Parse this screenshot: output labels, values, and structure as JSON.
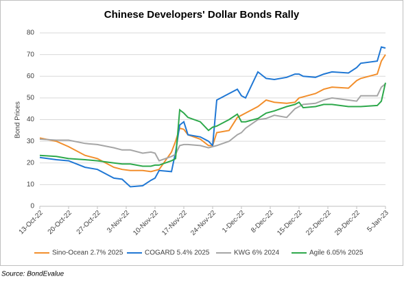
{
  "chart_data": {
    "type": "line",
    "title": "Chinese Developers' Dollar Bonds Rally",
    "y_label": "Bond Prices",
    "source": "Source: BondEvalue",
    "grid": true,
    "legend": "bottom",
    "x": [
      "2022-10-13",
      "2022-10-17",
      "2022-10-20",
      "2022-10-24",
      "2022-10-27",
      "2022-10-31",
      "2022-11-02",
      "2022-11-04",
      "2022-11-07",
      "2022-11-09",
      "2022-11-10",
      "2022-11-11",
      "2022-11-14",
      "2022-11-15",
      "2022-11-16",
      "2022-11-17",
      "2022-11-18",
      "2022-11-21",
      "2022-11-23",
      "2022-11-24",
      "2022-11-25",
      "2022-11-28",
      "2022-11-30",
      "2022-12-01",
      "2022-12-02",
      "2022-12-05",
      "2022-12-07",
      "2022-12-09",
      "2022-12-12",
      "2022-12-14",
      "2022-12-15",
      "2022-12-16",
      "2022-12-19",
      "2022-12-21",
      "2022-12-23",
      "2022-12-27",
      "2022-12-29",
      "2022-12-30",
      "2023-01-03",
      "2023-01-04",
      "2023-01-05"
    ],
    "series": [
      {
        "name": "Sino-Ocean 2.7% 2025",
        "color": "#f28e2b",
        "values": [
          31.5,
          30,
          27.5,
          23.5,
          22,
          18,
          17,
          16.5,
          16.5,
          16,
          16.5,
          17,
          25,
          30,
          36,
          35.5,
          33,
          31,
          28,
          28,
          34,
          35,
          41,
          42,
          43,
          46,
          49,
          48,
          47.5,
          48,
          50,
          50.5,
          52,
          54,
          55,
          54.5,
          58,
          59,
          61,
          67,
          70
        ]
      },
      {
        "name": "COGARD 5.4% 2025",
        "color": "#1f77d4",
        "values": [
          22.5,
          21.5,
          21,
          18,
          17,
          13,
          12.5,
          9,
          9.5,
          12,
          13,
          16.5,
          16,
          25,
          37.5,
          39,
          33,
          32,
          30,
          28,
          49,
          52,
          54,
          51,
          50,
          62,
          59,
          58.5,
          59.5,
          61,
          61,
          60,
          59.5,
          61,
          62,
          61.5,
          64,
          66,
          67,
          73.5,
          73
        ]
      },
      {
        "name": "KWG 6% 2024",
        "color": "#a5a5a5",
        "values": [
          31,
          30.5,
          30.5,
          29,
          28.5,
          27,
          26,
          26,
          24.5,
          25,
          24.5,
          21,
          23,
          24,
          28,
          28.5,
          28.5,
          28,
          27,
          27.5,
          28,
          30,
          33,
          34,
          36,
          40,
          40.5,
          42,
          41,
          45,
          46,
          47,
          47.5,
          49,
          50,
          49,
          48.5,
          51,
          51,
          55,
          56.5
        ]
      },
      {
        "name": "Agile 6.05% 2025",
        "color": "#2ca84a",
        "values": [
          23.5,
          23,
          22,
          21.5,
          21,
          20,
          19.5,
          19.5,
          18.5,
          18.5,
          19,
          19,
          21,
          22,
          44.5,
          43,
          41,
          39,
          35,
          36.5,
          37,
          40,
          42.5,
          39,
          39,
          40.5,
          43,
          44,
          46,
          47,
          48,
          45.5,
          46,
          47,
          47,
          46,
          46,
          46,
          46.5,
          48.5,
          57
        ]
      }
    ],
    "xlim": [
      "2022-10-13",
      "2023-01-05"
    ],
    "xticks": [
      {
        "value": "2022-10-13",
        "label": "13-Oct-22"
      },
      {
        "value": "2022-10-20",
        "label": "20-Oct-22"
      },
      {
        "value": "2022-10-27",
        "label": "27-Oct-22"
      },
      {
        "value": "2022-11-03",
        "label": "3-Nov-22"
      },
      {
        "value": "2022-11-10",
        "label": "10-Nov-22"
      },
      {
        "value": "2022-11-17",
        "label": "17-Nov-22"
      },
      {
        "value": "2022-11-24",
        "label": "24-Nov-22"
      },
      {
        "value": "2022-12-01",
        "label": "1-Dec-22"
      },
      {
        "value": "2022-12-08",
        "label": "8-Dec-22"
      },
      {
        "value": "2022-12-15",
        "label": "15-Dec-22"
      },
      {
        "value": "2022-12-22",
        "label": "22-Dec-22"
      },
      {
        "value": "2022-12-29",
        "label": "29-Dec-22"
      },
      {
        "value": "2023-01-05",
        "label": "5-Jan-23"
      }
    ],
    "ylim": [
      0,
      80
    ],
    "yticks": [
      0,
      10,
      20,
      30,
      40,
      50,
      60,
      70,
      80
    ]
  }
}
